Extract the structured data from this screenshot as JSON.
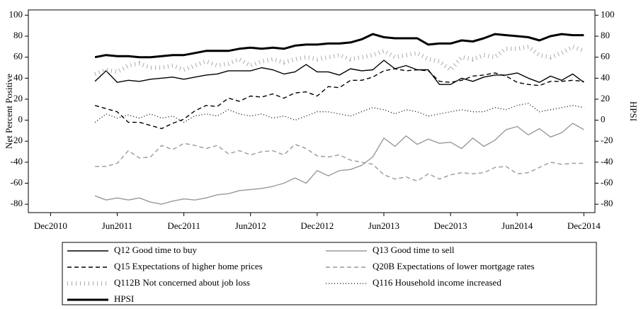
{
  "chart_data": {
    "type": "line",
    "y_label": "Net Percent Positive",
    "y2_label": "HPSI",
    "x": [
      "2011-04",
      "2011-05",
      "2011-06",
      "2011-07",
      "2011-08",
      "2011-09",
      "2011-10",
      "2011-11",
      "2011-12",
      "2012-01",
      "2012-02",
      "2012-03",
      "2012-04",
      "2012-05",
      "2012-06",
      "2012-07",
      "2012-08",
      "2012-09",
      "2012-10",
      "2012-11",
      "2012-12",
      "2013-01",
      "2013-02",
      "2013-03",
      "2013-04",
      "2013-05",
      "2013-06",
      "2013-07",
      "2013-08",
      "2013-09",
      "2013-10",
      "2013-11",
      "2013-12",
      "2014-01",
      "2014-02",
      "2014-03",
      "2014-04",
      "2014-05",
      "2014-06",
      "2014-07",
      "2014-08",
      "2014-09",
      "2014-10",
      "2014-11",
      "2014-12"
    ],
    "xlim": [
      "2010-10",
      "2015-01"
    ],
    "xticks": [
      {
        "value": "2010-12",
        "label": "Dec2010"
      },
      {
        "value": "2011-06",
        "label": "Jun2011"
      },
      {
        "value": "2011-12",
        "label": "Dec2011"
      },
      {
        "value": "2012-06",
        "label": "Jun2012"
      },
      {
        "value": "2012-12",
        "label": "Dec2012"
      },
      {
        "value": "2013-06",
        "label": "Jun2013"
      },
      {
        "value": "2013-12",
        "label": "Dec2013"
      },
      {
        "value": "2014-06",
        "label": "Jun2014"
      },
      {
        "value": "2014-12",
        "label": "Dec2014"
      }
    ],
    "ylim": [
      -88,
      105
    ],
    "yticks": [
      -80,
      -60,
      -40,
      -20,
      0,
      20,
      40,
      60,
      80,
      100
    ],
    "y2lim": [
      -88,
      105
    ],
    "y2ticks": [
      -80,
      -60,
      -40,
      -20,
      0,
      20,
      40,
      60,
      80,
      100
    ],
    "series": [
      {
        "name": "Q12   Good time to buy",
        "color": "#000000",
        "dash": "none",
        "width": 1.4,
        "values": [
          37,
          47,
          36,
          38,
          37,
          39,
          40,
          41,
          39,
          41,
          43,
          44,
          47,
          47,
          47,
          50,
          48,
          44,
          46,
          53,
          46,
          46,
          43,
          49,
          47,
          48,
          57,
          49,
          52,
          48,
          48,
          34,
          34,
          40,
          37,
          41,
          43,
          43,
          45,
          40,
          36,
          42,
          38,
          44,
          36
        ]
      },
      {
        "name": "Q13   Good time to sell",
        "color": "#999999",
        "dash": "none",
        "width": 1.4,
        "values": [
          -72,
          -76,
          -74,
          -76,
          -74,
          -78,
          -80,
          -77,
          -75,
          -76,
          -74,
          -71,
          -70,
          -67,
          -66,
          -65,
          -63,
          -60,
          -55,
          -60,
          -48,
          -53,
          -48,
          -47,
          -43,
          -35,
          -17,
          -25,
          -15,
          -23,
          -18,
          -22,
          -21,
          -27,
          -17,
          -25,
          -19,
          -9,
          -6,
          -14,
          -8,
          -16,
          -12,
          -3,
          -9
        ]
      },
      {
        "name": "Q15   Expectations of higher home prices",
        "color": "#000000",
        "dash": "6,4",
        "width": 1.4,
        "values": [
          14,
          11,
          8,
          -2,
          -2,
          -5,
          -8,
          -3,
          1,
          9,
          14,
          13,
          21,
          18,
          23,
          22,
          25,
          21,
          26,
          27,
          23,
          32,
          31,
          38,
          38,
          41,
          47,
          49,
          47,
          48,
          47,
          37,
          36,
          38,
          42,
          43,
          45,
          42,
          36,
          34,
          33,
          37,
          37,
          38,
          37
        ]
      },
      {
        "name": "Q20B   Expectations of lower mortgage rates",
        "color": "#999999",
        "dash": "6,4",
        "width": 1.4,
        "values": [
          -44,
          -44,
          -41,
          -29,
          -36,
          -35,
          -24,
          -28,
          -22,
          -24,
          -27,
          -24,
          -32,
          -29,
          -33,
          -30,
          -29,
          -33,
          -23,
          -27,
          -34,
          -35,
          -33,
          -38,
          -40,
          -42,
          -52,
          -56,
          -54,
          -58,
          -51,
          -56,
          -52,
          -50,
          -51,
          -50,
          -45,
          -44,
          -51,
          -50,
          -45,
          -40,
          -42,
          -41,
          -41
        ]
      },
      {
        "name": "Q112B  Not concerned about job loss",
        "color": "#aaaaaa",
        "dash": "1,5",
        "width": 6,
        "values": [
          44,
          48,
          46,
          52,
          54,
          50,
          50,
          52,
          48,
          52,
          56,
          52,
          54,
          58,
          52,
          56,
          58,
          55,
          58,
          60,
          58,
          60,
          62,
          58,
          60,
          62,
          66,
          60,
          62,
          64,
          58,
          56,
          48,
          60,
          58,
          62,
          60,
          68,
          68,
          70,
          62,
          60,
          64,
          70,
          66
        ]
      },
      {
        "name": "Q116   Household income increased",
        "color": "#000000",
        "dash": "1,3",
        "width": 1.3,
        "values": [
          -2,
          6,
          2,
          5,
          2,
          6,
          2,
          4,
          -2,
          4,
          6,
          4,
          10,
          6,
          4,
          6,
          2,
          4,
          0,
          4,
          8,
          8,
          6,
          4,
          8,
          12,
          10,
          6,
          10,
          8,
          4,
          6,
          8,
          10,
          8,
          8,
          12,
          10,
          14,
          16,
          8,
          10,
          12,
          14,
          12
        ]
      },
      {
        "name": "HPSI",
        "color": "#000000",
        "dash": "none",
        "width": 3,
        "axis": "y2",
        "values": [
          60,
          62,
          61,
          61,
          60,
          60,
          61,
          62,
          62,
          64,
          66,
          66,
          66,
          68,
          69,
          68,
          69,
          68,
          71,
          72,
          72,
          73,
          73,
          74,
          77,
          82,
          79,
          78,
          78,
          78,
          72,
          73,
          73,
          76,
          75,
          78,
          82,
          81,
          80,
          79,
          76,
          80,
          82,
          81,
          81
        ]
      }
    ]
  }
}
